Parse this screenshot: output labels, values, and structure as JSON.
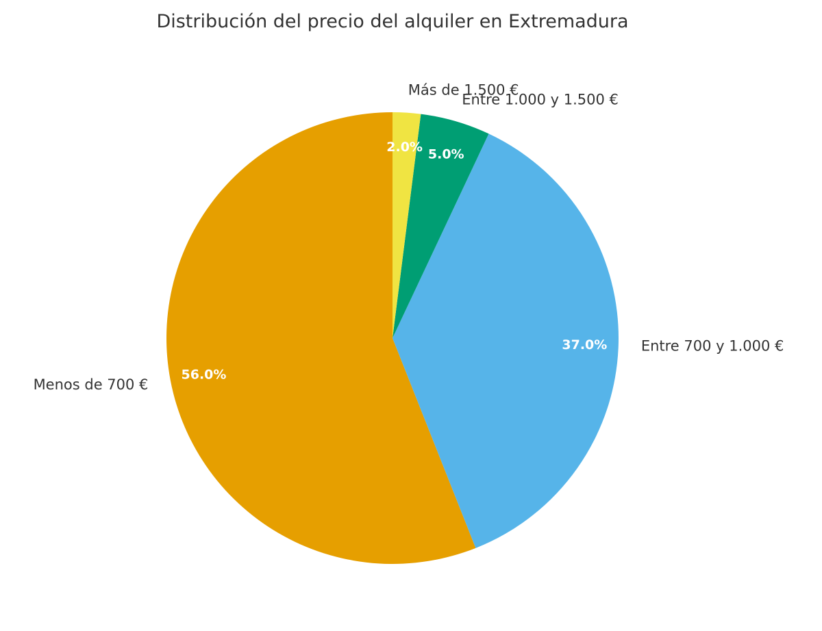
{
  "chart_data": {
    "type": "pie",
    "title": "Distribución del precio del alquiler en Extremadura",
    "categories": [
      "Menos de 700 €",
      "Entre 700 y 1.000 €",
      "Entre 1.000 y 1.500 €",
      "Más de 1.500 €"
    ],
    "values": [
      56.0,
      37.0,
      5.0,
      2.0
    ],
    "value_labels": [
      "56.0%",
      "37.0%",
      "5.0%",
      "2.0%"
    ],
    "colors": [
      "#E69F00",
      "#56B4E9",
      "#009E73",
      "#F0E442"
    ],
    "start_angle_deg": 90,
    "direction": "counterclockwise"
  }
}
